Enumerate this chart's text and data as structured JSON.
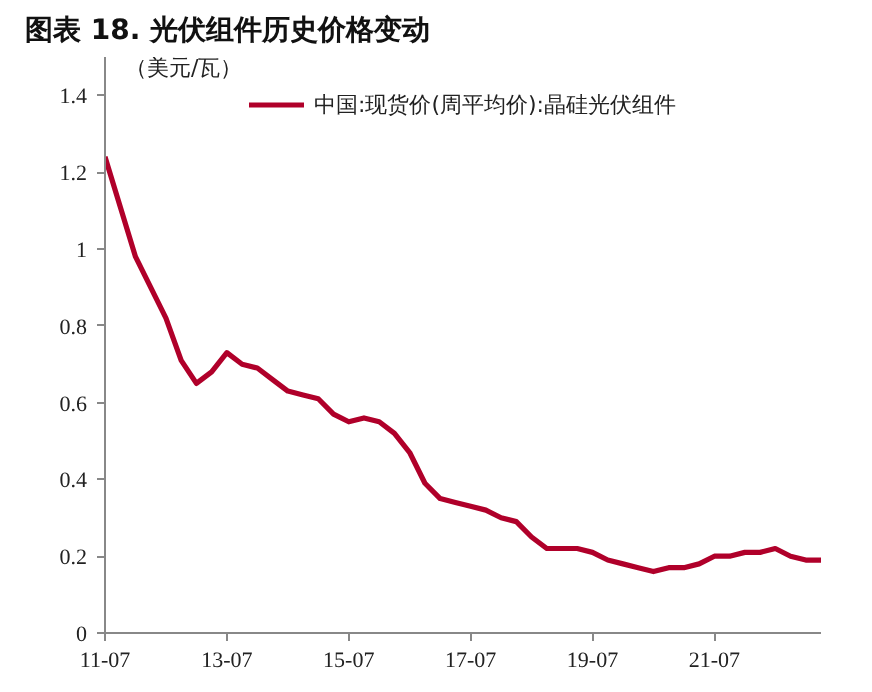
{
  "chart_data": {
    "type": "line",
    "title": "图表 18. 光伏组件历史价格变动",
    "ylabel": "（美元/瓦）",
    "categories": [
      "11-07",
      null,
      null,
      null,
      null,
      null,
      null,
      null,
      "13-07",
      null,
      null,
      null,
      null,
      null,
      null,
      null,
      "15-07",
      null,
      null,
      null,
      null,
      null,
      null,
      null,
      "17-07",
      null,
      null,
      null,
      null,
      null,
      null,
      null,
      "19-07",
      null,
      null,
      null,
      null,
      null,
      null,
      null,
      "21-07",
      null,
      null,
      null,
      null,
      null,
      null,
      null
    ],
    "series": [
      {
        "name": "中国:现货价(周平均价):晶硅光伏组件",
        "color": "#b0002a",
        "values": [
          1.24,
          1.11,
          0.98,
          0.9,
          0.82,
          0.71,
          0.65,
          0.68,
          0.73,
          0.7,
          0.69,
          0.66,
          0.63,
          0.62,
          0.61,
          0.57,
          0.55,
          0.56,
          0.55,
          0.52,
          0.47,
          0.39,
          0.35,
          0.34,
          0.33,
          0.32,
          0.3,
          0.29,
          0.25,
          0.22,
          0.22,
          0.22,
          0.21,
          0.19,
          0.18,
          0.17,
          0.16,
          0.17,
          0.17,
          0.18,
          0.2,
          0.2,
          0.21,
          0.21,
          0.22,
          0.2,
          0.19,
          0.19
        ]
      }
    ],
    "ylim": [
      0,
      1.5
    ],
    "yticks": [
      0,
      0.2,
      0.4,
      0.6,
      0.8,
      1,
      1.2,
      1.4
    ],
    "grid": false,
    "legend": "top",
    "line_style": "solid",
    "marker": "none"
  }
}
